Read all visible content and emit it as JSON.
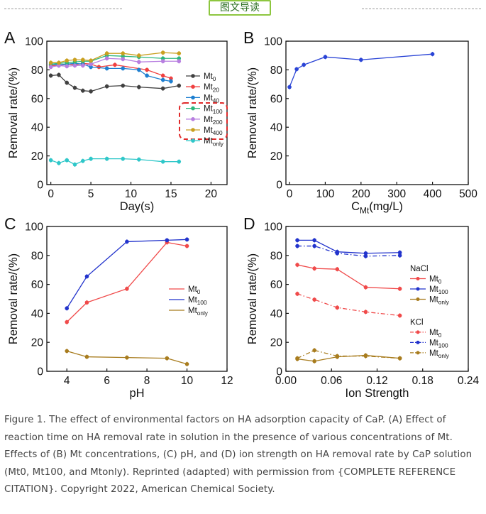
{
  "header": {
    "tag_label": "图文导读"
  },
  "caption": "Figure 1. The effect of environmental factors on HA adsorption capacity of CaP. (A) Effect of reaction time on HA removal rate in solution in the presence of various concentrations of Mt. Effects of (B) Mt concentrations, (C) pH, and (D) ion strength on HA removal rate by CaP solution (Mt0, Mt100, and Mtonly). Reprinted (adapted) with permission from {COMPLETE REFERENCE CITATION}. Copyright 2022, American Chemical Society.",
  "chart_data": [
    {
      "panel": "A",
      "type": "line",
      "xlabel": "Day(s)",
      "ylabel": "Removal rate/(%)",
      "xlim": [
        -0.5,
        22
      ],
      "ylim": [
        0,
        100
      ],
      "xticks": [
        0,
        5,
        10,
        15,
        20
      ],
      "yticks": [
        0,
        20,
        40,
        60,
        80,
        100
      ],
      "legend_position": "right",
      "series": [
        {
          "base": "Mt",
          "sub": "0",
          "color": "#404040",
          "boxed": false,
          "x": [
            0,
            1,
            2,
            3,
            4,
            5,
            7,
            9,
            11,
            14,
            16
          ],
          "y": [
            76,
            76.5,
            71,
            67.5,
            65.5,
            65,
            68.5,
            69,
            68,
            67,
            69
          ]
        },
        {
          "base": "Mt",
          "sub": "20",
          "color": "#f04040",
          "boxed": false,
          "x": [
            0,
            1,
            2,
            3,
            4,
            5,
            6,
            8,
            12,
            14,
            15
          ],
          "y": [
            83,
            83,
            84,
            83.5,
            84.5,
            84,
            82,
            83.5,
            80,
            76,
            74
          ]
        },
        {
          "base": "Mt",
          "sub": "40",
          "color": "#1e7fd0",
          "boxed": false,
          "x": [
            0,
            1,
            2,
            3,
            4,
            5,
            7,
            9,
            11,
            12,
            14,
            15
          ],
          "y": [
            84,
            83.5,
            84,
            84.5,
            84,
            82,
            81,
            81,
            80,
            76,
            73,
            72
          ]
        },
        {
          "base": "Mt",
          "sub": "100",
          "color": "#2db67c",
          "boxed": true,
          "x": [
            0,
            1,
            2,
            3,
            4,
            5,
            7,
            9,
            11,
            14,
            16
          ],
          "y": [
            84,
            84.5,
            85,
            85.5,
            86,
            86,
            90,
            89.5,
            89,
            88,
            88
          ]
        },
        {
          "base": "Mt",
          "sub": "200",
          "color": "#b77ee0",
          "boxed": true,
          "x": [
            0,
            1,
            2,
            3,
            4,
            5,
            7,
            9,
            11,
            14,
            16
          ],
          "y": [
            82,
            83,
            82.5,
            83,
            83,
            84,
            88,
            87.5,
            85.5,
            86,
            86
          ]
        },
        {
          "base": "Mt",
          "sub": "400",
          "color": "#c9a020",
          "boxed": true,
          "x": [
            0,
            1,
            2,
            3,
            4,
            5,
            7,
            9,
            11,
            14,
            16
          ],
          "y": [
            85,
            85,
            86.5,
            87,
            87,
            86.5,
            91.5,
            91.5,
            90,
            92,
            91.5
          ]
        },
        {
          "base": "Mt",
          "sub": "only",
          "color": "#2fc7c9",
          "boxed": false,
          "x": [
            0,
            1,
            2,
            3,
            4,
            5,
            7,
            9,
            11,
            14,
            16
          ],
          "y": [
            17,
            15,
            17,
            14,
            16.5,
            18,
            18,
            18,
            17.5,
            16,
            16
          ]
        }
      ]
    },
    {
      "panel": "B",
      "type": "line",
      "xlabel_base": "C",
      "xlabel_sub": "Mt",
      "xlabel_tail": "(mg/L)",
      "ylabel": "Removal rate/(%)",
      "xlim": [
        -10,
        500
      ],
      "ylim": [
        0,
        100
      ],
      "xticks": [
        0,
        100,
        200,
        300,
        400,
        500
      ],
      "yticks": [
        0,
        20,
        40,
        60,
        80,
        100
      ],
      "series": [
        {
          "color": "#2a44d6",
          "x": [
            0,
            20,
            40,
            100,
            200,
            400
          ],
          "y": [
            68,
            80.5,
            83.5,
            89,
            87,
            91
          ]
        }
      ]
    },
    {
      "panel": "C",
      "type": "line",
      "xlabel": "pH",
      "ylabel": "Removal rate/(%)",
      "xlim": [
        3,
        12
      ],
      "ylim": [
        0,
        100
      ],
      "xticks": [
        4,
        6,
        8,
        10,
        12
      ],
      "yticks": [
        0,
        20,
        40,
        60,
        80,
        100
      ],
      "legend_position": "center-right",
      "series": [
        {
          "base": "Mt",
          "sub": "0",
          "color": "#f04a4a",
          "x": [
            4,
            5,
            7,
            9,
            10
          ],
          "y": [
            34,
            47.5,
            57,
            89,
            86.5
          ]
        },
        {
          "base": "Mt",
          "sub": "100",
          "color": "#2233cc",
          "x": [
            4,
            5,
            7,
            9,
            10
          ],
          "y": [
            43.5,
            65.5,
            89.5,
            90.5,
            91
          ]
        },
        {
          "base": "Mt",
          "sub": "only",
          "color": "#a87c1e",
          "x": [
            4,
            5,
            7,
            9,
            10
          ],
          "y": [
            14,
            10,
            9.5,
            9,
            5
          ]
        }
      ]
    },
    {
      "panel": "D",
      "type": "line",
      "xlabel": "Ion Strength",
      "ylabel": "Removal rate/(%)",
      "xlim": [
        0,
        0.24
      ],
      "ylim": [
        0,
        100
      ],
      "xticks": [
        0.0,
        0.06,
        0.12,
        0.18,
        0.24
      ],
      "xticklabels": [
        "0.00",
        "0.06",
        "0.12",
        "0.18",
        "0.24"
      ],
      "yticks": [
        0,
        20,
        40,
        60,
        80,
        100
      ],
      "legend_position": "right",
      "legend_groups": [
        "NaCl",
        "KCl"
      ],
      "series": [
        {
          "group": "NaCl",
          "base": "Mt",
          "sub": "0",
          "color": "#f04a4a",
          "dashed": false,
          "x": [
            0.015,
            0.0375,
            0.0675,
            0.105,
            0.15
          ],
          "y": [
            73.5,
            71,
            70.5,
            58,
            57
          ]
        },
        {
          "group": "NaCl",
          "base": "Mt",
          "sub": "100",
          "color": "#2233cc",
          "dashed": false,
          "x": [
            0.015,
            0.0375,
            0.0675,
            0.105,
            0.15
          ],
          "y": [
            90.5,
            90.5,
            82.5,
            81.5,
            82
          ]
        },
        {
          "group": "NaCl",
          "base": "Mt",
          "sub": "only",
          "color": "#a87c1e",
          "dashed": false,
          "x": [
            0.015,
            0.0375,
            0.0675,
            0.105,
            0.15
          ],
          "y": [
            8.5,
            7,
            10,
            11,
            9
          ]
        },
        {
          "group": "KCl",
          "base": "Mt",
          "sub": "0",
          "color": "#f04a4a",
          "dashed": true,
          "x": [
            0.015,
            0.0375,
            0.0675,
            0.105,
            0.15
          ],
          "y": [
            53.5,
            49.5,
            44,
            41,
            38.5
          ]
        },
        {
          "group": "KCl",
          "base": "Mt",
          "sub": "100",
          "color": "#2233cc",
          "dashed": true,
          "x": [
            0.015,
            0.0375,
            0.0675,
            0.105,
            0.15
          ],
          "y": [
            86.5,
            86.5,
            81.5,
            79.5,
            80
          ]
        },
        {
          "group": "KCl",
          "base": "Mt",
          "sub": "only",
          "color": "#a87c1e",
          "dashed": true,
          "x": [
            0.015,
            0.0375,
            0.0675,
            0.105,
            0.15
          ],
          "y": [
            9,
            14.5,
            10.5,
            10.5,
            9
          ]
        }
      ]
    }
  ]
}
